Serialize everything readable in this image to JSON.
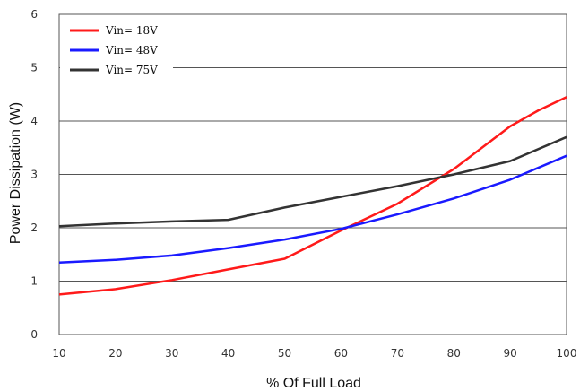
{
  "chart_data": {
    "type": "line",
    "title": "",
    "xlabel": "% Of Full Load",
    "ylabel": "Power Dissipation (W)",
    "xlim": [
      10,
      100
    ],
    "ylim": [
      0,
      6
    ],
    "x_ticks": [
      10,
      20,
      30,
      40,
      50,
      60,
      70,
      80,
      90,
      100
    ],
    "y_ticks": [
      0,
      1,
      2,
      3,
      4,
      5,
      6
    ],
    "grid": "horizontal",
    "legend_position": "top-left",
    "series": [
      {
        "name": "Vin= 18V",
        "color": "#ff1a1a",
        "x": [
          10,
          20,
          30,
          40,
          50,
          60,
          70,
          80,
          90,
          95,
          100
        ],
        "y": [
          0.75,
          0.85,
          1.02,
          1.22,
          1.42,
          1.95,
          2.45,
          3.1,
          3.9,
          4.2,
          4.45
        ]
      },
      {
        "name": "Vin= 48V",
        "color": "#1a1aff",
        "x": [
          10,
          20,
          30,
          40,
          50,
          60,
          70,
          80,
          90,
          100
        ],
        "y": [
          1.35,
          1.4,
          1.48,
          1.62,
          1.78,
          1.98,
          2.25,
          2.55,
          2.9,
          3.35
        ]
      },
      {
        "name": "Vin= 75V",
        "color": "#333333",
        "x": [
          10,
          20,
          30,
          40,
          50,
          60,
          70,
          80,
          90,
          100
        ],
        "y": [
          2.03,
          2.08,
          2.12,
          2.15,
          2.38,
          2.58,
          2.78,
          3.0,
          3.25,
          3.7
        ]
      }
    ]
  }
}
